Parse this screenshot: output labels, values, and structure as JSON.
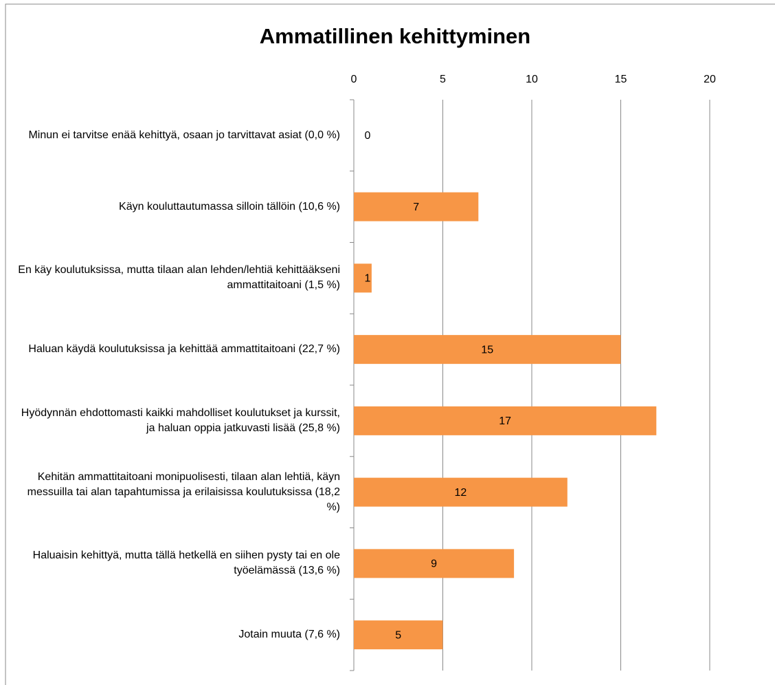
{
  "chart_data": {
    "type": "barh",
    "title": "Ammatillinen kehittyminen",
    "categories": [
      "Minun ei tarvitse enää kehittyä, osaan jo tarvittavat asiat (0,0 %)",
      "Käyn kouluttautumassa silloin tällöin (10,6 %)",
      "En käy koulutuksissa, mutta tilaan alan lehden/lehtiä kehittääkseni ammattitaitoani (1,5 %)",
      "Haluan käydä koulutuksissa ja kehittää ammattitaitoani (22,7 %)",
      "Hyödynnän ehdottomasti kaikki mahdolliset koulutukset ja kurssit, ja haluan oppia jatkuvasti lisää (25,8 %)",
      "Kehitän ammattitaitoani monipuolisesti, tilaan alan lehtiä, käyn messuilla tai alan tapahtumissa ja erilaisissa koulutuksissa (18,2 %)",
      "Haluaisin kehittyä, mutta tällä hetkellä en siihen pysty tai en ole työelämässä (13,6 %)",
      "Jotain muuta (7,6 %)"
    ],
    "values": [
      0,
      7,
      1,
      15,
      17,
      12,
      9,
      5
    ],
    "color": "#f79646",
    "xlim": [
      0,
      20
    ],
    "xticks": [
      0,
      5,
      10,
      15,
      20
    ],
    "grid": true
  }
}
